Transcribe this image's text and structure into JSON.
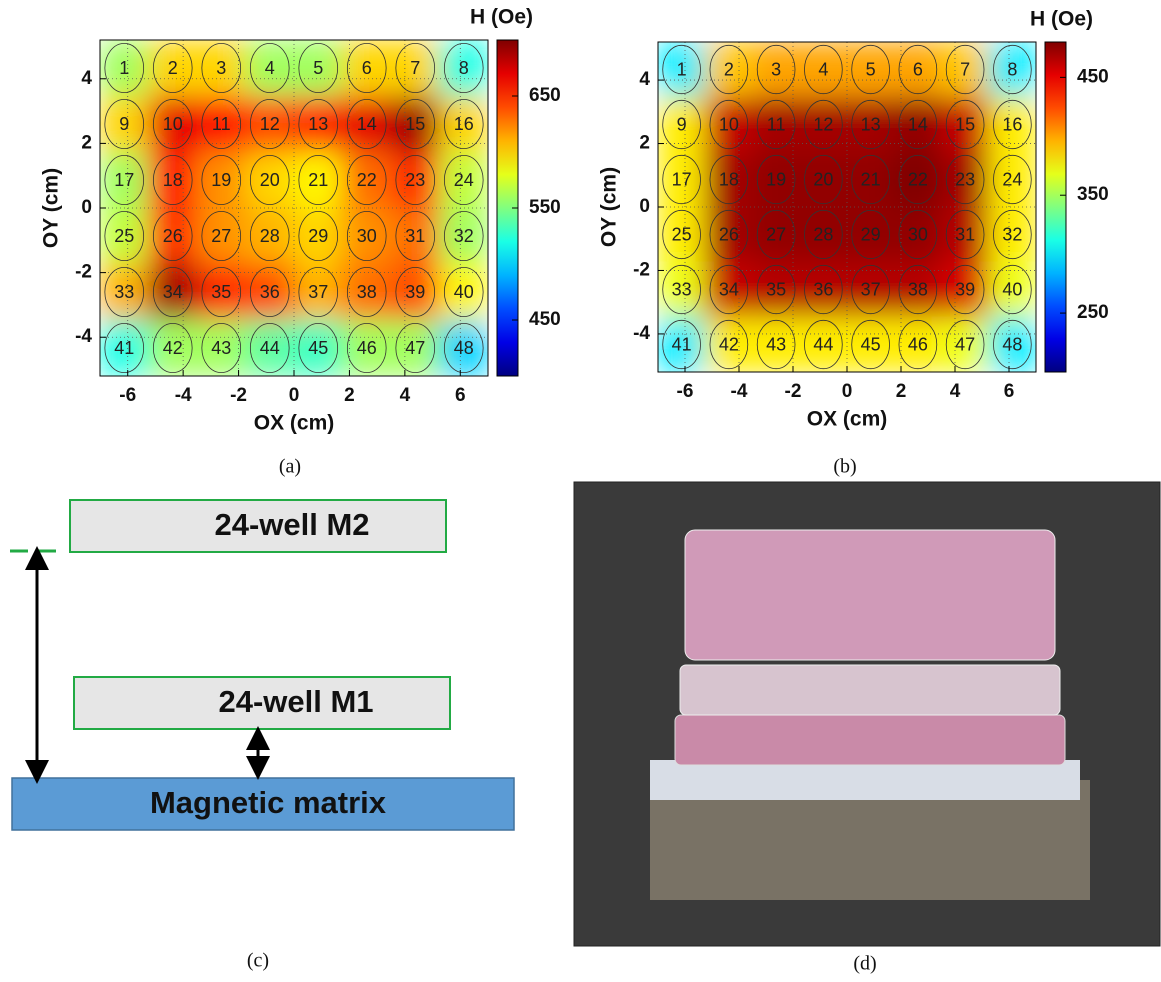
{
  "chart_data": [
    {
      "type": "heatmap",
      "colorbar_label": "H (Oe)",
      "xlabel": "OX (cm)",
      "ylabel": "OY (cm)",
      "xlim": [
        -7,
        7
      ],
      "ylim": [
        -5.2,
        5.2
      ],
      "xticks": [
        -6,
        -4,
        -2,
        0,
        2,
        4,
        6
      ],
      "yticks": [
        -4,
        -2,
        0,
        2,
        4
      ],
      "clim": [
        400,
        700
      ],
      "cticks": [
        450,
        550,
        650
      ],
      "colormap": "jet",
      "grid": true,
      "wells": [
        1,
        2,
        3,
        4,
        5,
        6,
        7,
        8,
        9,
        10,
        11,
        12,
        13,
        14,
        15,
        16,
        17,
        18,
        19,
        20,
        21,
        22,
        23,
        24,
        25,
        26,
        27,
        28,
        29,
        30,
        31,
        32,
        33,
        34,
        35,
        36,
        37,
        38,
        39,
        40,
        41,
        42,
        43,
        44,
        45,
        46,
        47,
        48
      ],
      "values": [
        560,
        600,
        600,
        560,
        560,
        600,
        600,
        520,
        600,
        670,
        660,
        640,
        650,
        670,
        690,
        600,
        560,
        660,
        620,
        600,
        590,
        630,
        650,
        570,
        570,
        650,
        620,
        610,
        600,
        620,
        630,
        560,
        610,
        690,
        650,
        640,
        610,
        630,
        640,
        590,
        520,
        560,
        560,
        540,
        530,
        560,
        560,
        500
      ]
    },
    {
      "type": "heatmap",
      "colorbar_label": "H (Oe)",
      "xlabel": "OX (cm)",
      "ylabel": "OY (cm)",
      "xlim": [
        -7,
        7
      ],
      "ylim": [
        -5.2,
        5.2
      ],
      "xticks": [
        -6,
        -4,
        -2,
        0,
        2,
        4,
        6
      ],
      "yticks": [
        -4,
        -2,
        0,
        2,
        4
      ],
      "clim": [
        200,
        480
      ],
      "cticks": [
        250,
        350,
        450
      ],
      "colormap": "jet",
      "grid": true,
      "wells": [
        1,
        2,
        3,
        4,
        5,
        6,
        7,
        8,
        9,
        10,
        11,
        12,
        13,
        14,
        15,
        16,
        17,
        18,
        19,
        20,
        21,
        22,
        23,
        24,
        25,
        26,
        27,
        28,
        29,
        30,
        31,
        32,
        33,
        34,
        35,
        36,
        37,
        38,
        39,
        40,
        41,
        42,
        43,
        44,
        45,
        46,
        47,
        48
      ],
      "values": [
        300,
        390,
        400,
        400,
        400,
        400,
        390,
        300,
        380,
        460,
        470,
        470,
        470,
        475,
        460,
        380,
        380,
        470,
        475,
        475,
        475,
        480,
        470,
        380,
        380,
        470,
        475,
        475,
        475,
        475,
        465,
        380,
        370,
        460,
        465,
        465,
        465,
        465,
        455,
        370,
        300,
        380,
        380,
        380,
        380,
        380,
        370,
        300
      ]
    }
  ],
  "panels": {
    "a": "(a)",
    "b": "(b)",
    "c": "(c)",
    "d": "(d)"
  },
  "diagram": {
    "top_plate": "24-well M2",
    "bottom_plate": "24-well M1",
    "base": "Magnetic matrix"
  }
}
